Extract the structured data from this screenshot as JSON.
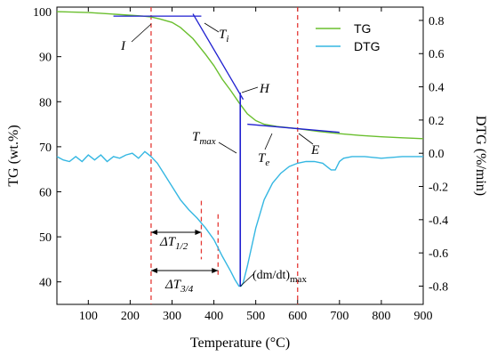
{
  "chart_data": {
    "type": "line",
    "xlabel": "Temperature (°C)",
    "ylabel_left": "TG (wt.%)",
    "ylabel_right": "DTG (%/min)",
    "xlim": [
      25,
      900
    ],
    "ylim_left": [
      35,
      101
    ],
    "ylim_right": [
      -0.91,
      0.88
    ],
    "x_ticks": [
      100,
      200,
      300,
      400,
      500,
      600,
      700,
      800,
      900
    ],
    "y_left_ticks": [
      40,
      50,
      60,
      70,
      80,
      90,
      100
    ],
    "y_right_ticks": [
      "0.8",
      "0.6",
      "0.4",
      "0.2",
      "0.0",
      "-0.2",
      "-0.4",
      "-0.6",
      "-0.8"
    ],
    "y_right_values": [
      0.8,
      0.6,
      0.4,
      0.2,
      0.0,
      -0.2,
      -0.4,
      -0.6,
      -0.8
    ],
    "legend": {
      "position": "top-right",
      "entries": [
        "TG",
        "DTG"
      ]
    },
    "colors": {
      "TG": "#6abf2e",
      "DTG": "#35b7e2",
      "tangent": "#1f1fd0",
      "marker": "#e53935"
    },
    "series": [
      {
        "name": "TG",
        "axis": "left",
        "x": [
          25,
          100,
          150,
          200,
          230,
          250,
          270,
          300,
          320,
          350,
          380,
          400,
          420,
          440,
          460,
          480,
          500,
          520,
          550,
          600,
          650,
          700,
          750,
          800,
          850,
          900
        ],
        "y": [
          100.0,
          99.8,
          99.5,
          99.2,
          99.0,
          98.8,
          98.4,
          97.6,
          96.5,
          94.0,
          90.5,
          88.0,
          85.0,
          82.5,
          79.8,
          77.3,
          75.8,
          75.0,
          74.5,
          74.0,
          73.4,
          72.9,
          72.5,
          72.2,
          72.0,
          71.8
        ]
      },
      {
        "name": "DTG",
        "axis": "right",
        "x": [
          25,
          40,
          55,
          70,
          85,
          100,
          115,
          130,
          145,
          160,
          175,
          190,
          205,
          220,
          235,
          250,
          265,
          280,
          300,
          320,
          340,
          360,
          380,
          400,
          420,
          440,
          450,
          460,
          465,
          470,
          480,
          500,
          520,
          540,
          560,
          580,
          600,
          620,
          640,
          660,
          680,
          690,
          700,
          710,
          730,
          760,
          800,
          850,
          900
        ],
        "y": [
          -0.02,
          -0.04,
          -0.05,
          -0.02,
          -0.05,
          -0.01,
          -0.04,
          -0.01,
          -0.05,
          -0.02,
          -0.03,
          -0.01,
          0.0,
          -0.03,
          0.01,
          -0.02,
          -0.06,
          -0.12,
          -0.2,
          -0.28,
          -0.34,
          -0.39,
          -0.45,
          -0.52,
          -0.62,
          -0.71,
          -0.76,
          -0.8,
          -0.8,
          -0.78,
          -0.68,
          -0.45,
          -0.28,
          -0.18,
          -0.12,
          -0.08,
          -0.06,
          -0.05,
          -0.05,
          -0.06,
          -0.1,
          -0.1,
          -0.05,
          -0.03,
          -0.02,
          -0.02,
          -0.03,
          -0.02,
          -0.02
        ]
      }
    ],
    "annotations": {
      "I": "I",
      "Ti": "T",
      "Ti_sub": "i",
      "H": "H",
      "Tmax": "T",
      "Tmax_sub": "max",
      "Te": "T",
      "Te_sub": "e",
      "E": "E",
      "dT12": "ΔT",
      "dT12_sub": "1/2",
      "dT34": "ΔT",
      "dT34_sub": "3/4",
      "dmdt": "(dm/dt)",
      "dmdt_sub": "max"
    },
    "reference_lines_x": [
      250,
      600
    ],
    "half_width_lines_x": [
      370,
      410
    ],
    "peak_x": 463,
    "tangent_upper": {
      "x": [
        160,
        370
      ],
      "y": [
        99.0,
        99.0
      ]
    },
    "tangent_steep": {
      "x": [
        350,
        470
      ],
      "y": [
        99.5,
        80.5
      ]
    },
    "tangent_lower": {
      "x": [
        480,
        700
      ],
      "y": [
        75.0,
        73.2
      ]
    }
  }
}
